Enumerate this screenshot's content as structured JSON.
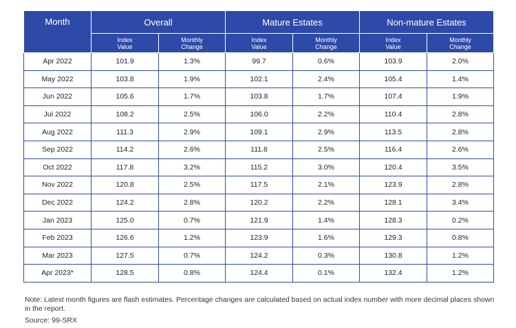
{
  "header": {
    "month": "Month",
    "groups": [
      "Overall",
      "Mature Estates",
      "Non-mature Estates"
    ],
    "index_label": [
      "Index",
      "Value"
    ],
    "change_label": [
      "Monthly",
      "Change"
    ]
  },
  "rows": [
    {
      "month": "Apr 2022",
      "cells": [
        "101.9",
        "1.3%",
        "99.7",
        "0.6%",
        "103.9",
        "2.0%"
      ]
    },
    {
      "month": "May 2022",
      "cells": [
        "103.8",
        "1.9%",
        "102.1",
        "2.4%",
        "105.4",
        "1.4%"
      ]
    },
    {
      "month": "Jun 2022",
      "cells": [
        "105.6",
        "1.7%",
        "103.8",
        "1.7%",
        "107.4",
        "1.9%"
      ]
    },
    {
      "month": "Jul 2022",
      "cells": [
        "108.2",
        "2.5%",
        "106.0",
        "2.2%",
        "110.4",
        "2.8%"
      ]
    },
    {
      "month": "Aug 2022",
      "cells": [
        "111.3",
        "2.9%",
        "109.1",
        "2.9%",
        "113.5",
        "2.8%"
      ]
    },
    {
      "month": "Sep 2022",
      "cells": [
        "114.2",
        "2.6%",
        "111.8",
        "2.5%",
        "116.4",
        "2.6%"
      ]
    },
    {
      "month": "Oct 2022",
      "cells": [
        "117.8",
        "3.2%",
        "115.2",
        "3.0%",
        "120.4",
        "3.5%"
      ]
    },
    {
      "month": "Nov 2022",
      "cells": [
        "120.8",
        "2.5%",
        "117.5",
        "2.1%",
        "123.9",
        "2.8%"
      ]
    },
    {
      "month": "Dec 2022",
      "cells": [
        "124.2",
        "2.8%",
        "120.2",
        "2.2%",
        "128.1",
        "3.4%"
      ]
    },
    {
      "month": "Jan 2023",
      "cells": [
        "125.0",
        "0.7%",
        "121.9",
        "1.4%",
        "128.3",
        "0.2%"
      ]
    },
    {
      "month": "Feb 2023",
      "cells": [
        "126.6",
        "1.2%",
        "123.9",
        "1.6%",
        "129.3",
        "0.8%"
      ]
    },
    {
      "month": "Mar 2023",
      "cells": [
        "127.5",
        "0.7%",
        "124.2",
        "0.3%",
        "130.8",
        "1.2%"
      ]
    },
    {
      "month": "Apr 2023*",
      "cells": [
        "128.5",
        "0.8%",
        "124.4",
        "0.1%",
        "132.4",
        "1.2%"
      ]
    }
  ],
  "note": "Note: Latest month figures are flash estimates. Percentage changes are calculated based on actual index number with more decimal places shown in the report.",
  "source": "Source: 99-SRX",
  "colors": {
    "header_bg": "#2e4aa8",
    "border": "#2e4aa8"
  }
}
